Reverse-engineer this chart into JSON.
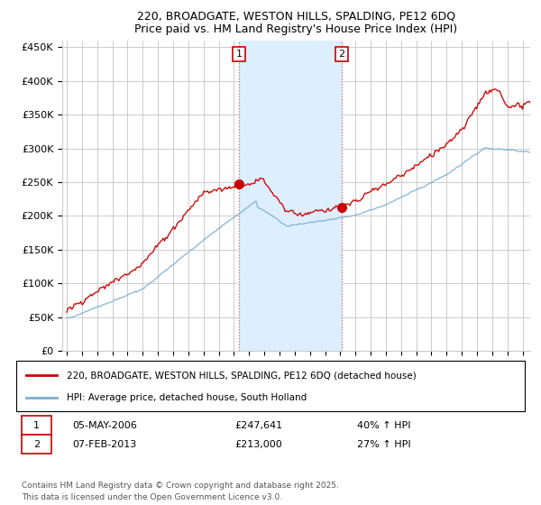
{
  "title1": "220, BROADGATE, WESTON HILLS, SPALDING, PE12 6DQ",
  "title2": "Price paid vs. HM Land Registry's House Price Index (HPI)",
  "yticks": [
    0,
    50000,
    100000,
    150000,
    200000,
    250000,
    300000,
    350000,
    400000,
    450000
  ],
  "ytick_labels": [
    "£0",
    "£50K",
    "£100K",
    "£150K",
    "£200K",
    "£250K",
    "£300K",
    "£350K",
    "£400K",
    "£450K"
  ],
  "ylim": [
    0,
    460000
  ],
  "xlim_start": 1994.7,
  "xlim_end": 2025.5,
  "transaction1_x": 2006.35,
  "transaction1_y": 247641,
  "transaction2_x": 2013.08,
  "transaction2_y": 213000,
  "vline1_x": 2006.35,
  "vline2_x": 2013.08,
  "shaded_region_start": 2006.35,
  "shaded_region_end": 2013.08,
  "legend_line1": "220, BROADGATE, WESTON HILLS, SPALDING, PE12 6DQ (detached house)",
  "legend_line2": "HPI: Average price, detached house, South Holland",
  "footnote1": "Contains HM Land Registry data © Crown copyright and database right 2025.",
  "footnote2": "This data is licensed under the Open Government Licence v3.0.",
  "marker1_date": "05-MAY-2006",
  "marker1_price": "£247,641",
  "marker1_hpi": "40% ↑ HPI",
  "marker2_date": "07-FEB-2013",
  "marker2_price": "£213,000",
  "marker2_hpi": "27% ↑ HPI",
  "line_color_red": "#cc0000",
  "line_color_blue": "#7bafd4",
  "shaded_color": "#ddeeff",
  "vline_color": "#e06060",
  "background_color": "#ffffff",
  "grid_color": "#cccccc",
  "label_box_color": "#cc0000"
}
